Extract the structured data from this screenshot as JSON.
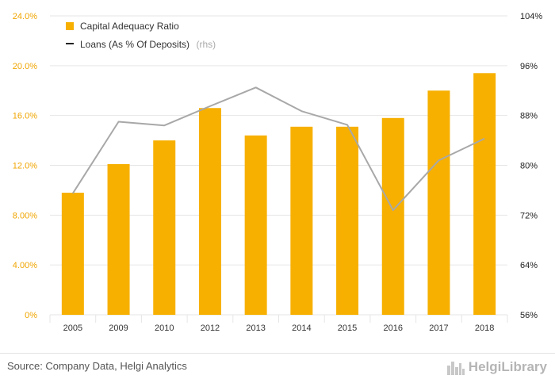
{
  "chart_data": {
    "type": "bar",
    "categories": [
      "2005",
      "2009",
      "2010",
      "2012",
      "2013",
      "2014",
      "2015",
      "2016",
      "2017",
      "2018"
    ],
    "series": [
      {
        "name": "Capital Adequacy Ratio",
        "type": "bar",
        "axis": "left",
        "values": [
          9.8,
          12.1,
          14.0,
          16.6,
          14.4,
          15.1,
          15.1,
          15.8,
          18.0,
          19.4
        ]
      },
      {
        "name": "Loans (As % Of Deposits)",
        "name_suffix": "(rhs)",
        "type": "line",
        "axis": "right",
        "values": [
          75.5,
          87.0,
          86.4,
          89.5,
          92.5,
          88.7,
          86.5,
          72.8,
          80.8,
          84.3
        ]
      }
    ],
    "y_left": {
      "ylim": [
        0,
        24
      ],
      "tick_values": [
        0,
        4,
        8,
        12,
        16,
        20,
        24
      ],
      "tick_labels": [
        "0%",
        "4.00%",
        "8.00%",
        "12.0%",
        "16.0%",
        "20.0%",
        "24.0%"
      ]
    },
    "y_right": {
      "ylim": [
        56,
        104
      ],
      "tick_values": [
        56,
        64,
        72,
        80,
        88,
        96,
        104
      ],
      "tick_labels": [
        "56%",
        "64%",
        "72%",
        "80%",
        "88%",
        "96%",
        "104%"
      ]
    },
    "legend_position": "top-left",
    "grid": true,
    "colors": {
      "bar": "#f7b000",
      "line": "#a8a8a8",
      "legend_line": "#222222",
      "left_ticks": "#f0a500",
      "grid": "#e6e6e6"
    }
  },
  "footer": {
    "source": "Source: Company Data, Helgi Analytics",
    "brand": "HelgiLibrary",
    "brand_icon": "city-skyline-icon"
  }
}
